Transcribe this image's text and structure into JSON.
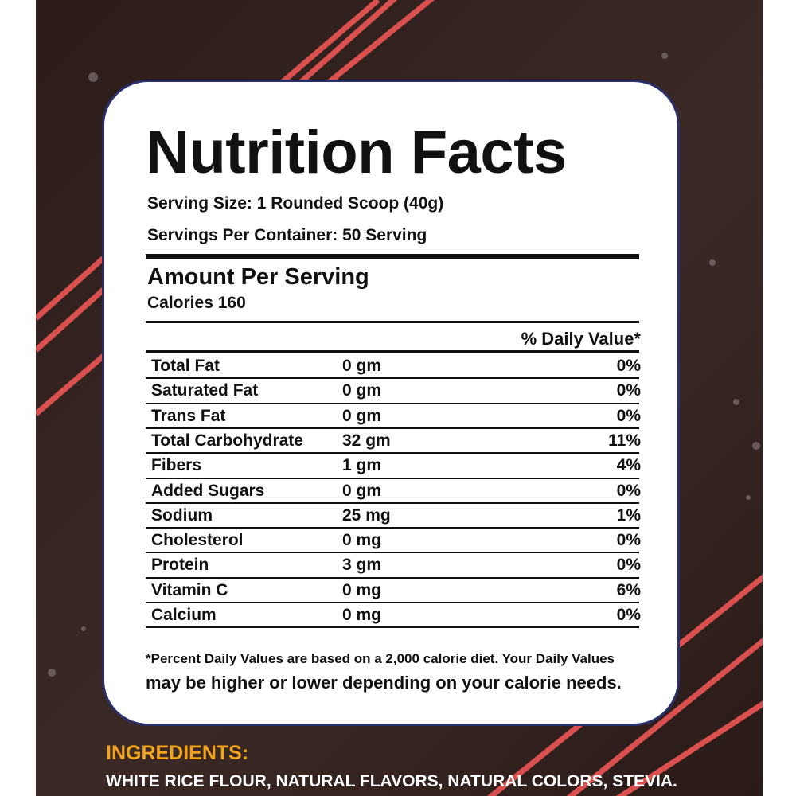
{
  "title": "Nutrition Facts",
  "serving_size": "Serving Size: 1 Rounded Scoop (40g)",
  "servings_per_container": "Servings Per Container: 50 Serving",
  "amount_per_serving": "Amount Per Serving",
  "calories": "Calories 160",
  "daily_value_header": "% Daily Value*",
  "table": {
    "rows": [
      [
        "Total Fat",
        "0 gm",
        "0%"
      ],
      [
        "Saturated Fat",
        "0 gm",
        "0%"
      ],
      [
        "Trans Fat",
        "0 gm",
        "0%"
      ],
      [
        "Total Carbohydrate",
        "32 gm",
        "11%"
      ],
      [
        "Fibers",
        "1 gm",
        "4%"
      ],
      [
        "Added Sugars",
        "0 gm",
        "0%"
      ],
      [
        "Sodium",
        "25 mg",
        "1%"
      ],
      [
        "Cholesterol",
        "0 mg",
        "0%"
      ],
      [
        "Protein",
        "3 gm",
        "0%"
      ],
      [
        "Vitamin C",
        "0 mg",
        "6%"
      ],
      [
        "Calcium",
        "0 mg",
        "0%"
      ]
    ]
  },
  "footnote": [
    "*Percent Daily Values are based on a 2,000 calorie  diet. Your Daily Values",
    "may be higher or lower depending on your calorie needs."
  ],
  "ingredients": {
    "title": "INGREDIENTS:",
    "text": "WHITE RICE FLOUR, NATURAL FLAVORS, NATURAL COLORS, STEVIA."
  }
}
